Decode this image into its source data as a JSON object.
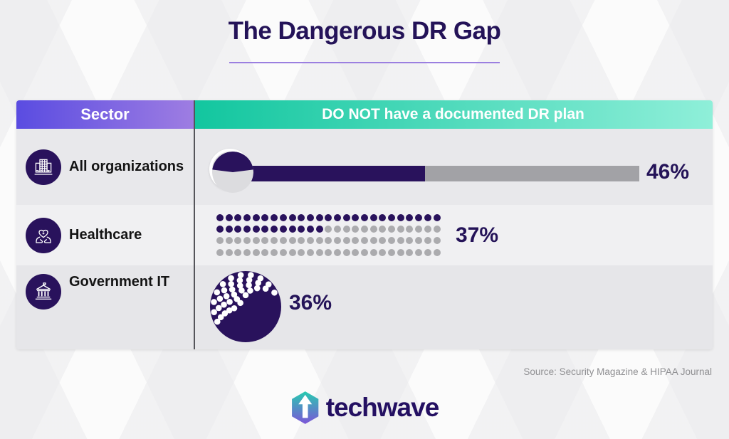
{
  "page": {
    "title": "The Dangerous DR Gap",
    "source": "Source: Security Magazine & HIPAA Journal",
    "brand": "techwave"
  },
  "colors": {
    "navy": "#29125c",
    "title_navy": "#241358",
    "bar_gray": "#a2a2a6",
    "dot_gray": "#ababae",
    "pie_bg": "#dcdcdf",
    "purple_gradient_start": "#5a4ce1",
    "purple_gradient_end": "#9e7de2",
    "teal_gradient_start": "#12c69f",
    "teal_gradient_end": "#8fefd9",
    "underline_purple": "#9b7fe0"
  },
  "chart_data": {
    "type": "table",
    "title": "The Dangerous DR Gap",
    "columns": [
      "Sector",
      "DO NOT have a documented DR plan"
    ],
    "unit": "%",
    "rows": [
      {
        "sector": "All organizations",
        "icon": "buildings-icon",
        "value": 46,
        "value_label": "46%",
        "viz": "pie-and-bar"
      },
      {
        "sector": "Healthcare",
        "icon": "hands-heart-icon",
        "value": 37,
        "value_label": "37%",
        "viz": "dot-matrix",
        "matrix": {
          "rows": 4,
          "cols": 25
        }
      },
      {
        "sector": "Government IT",
        "icon": "government-building-icon",
        "value": 36,
        "value_label": "36%",
        "viz": "dotted-circle",
        "dot_arcs": [
          11,
          9,
          7,
          5,
          3,
          1
        ]
      }
    ]
  }
}
